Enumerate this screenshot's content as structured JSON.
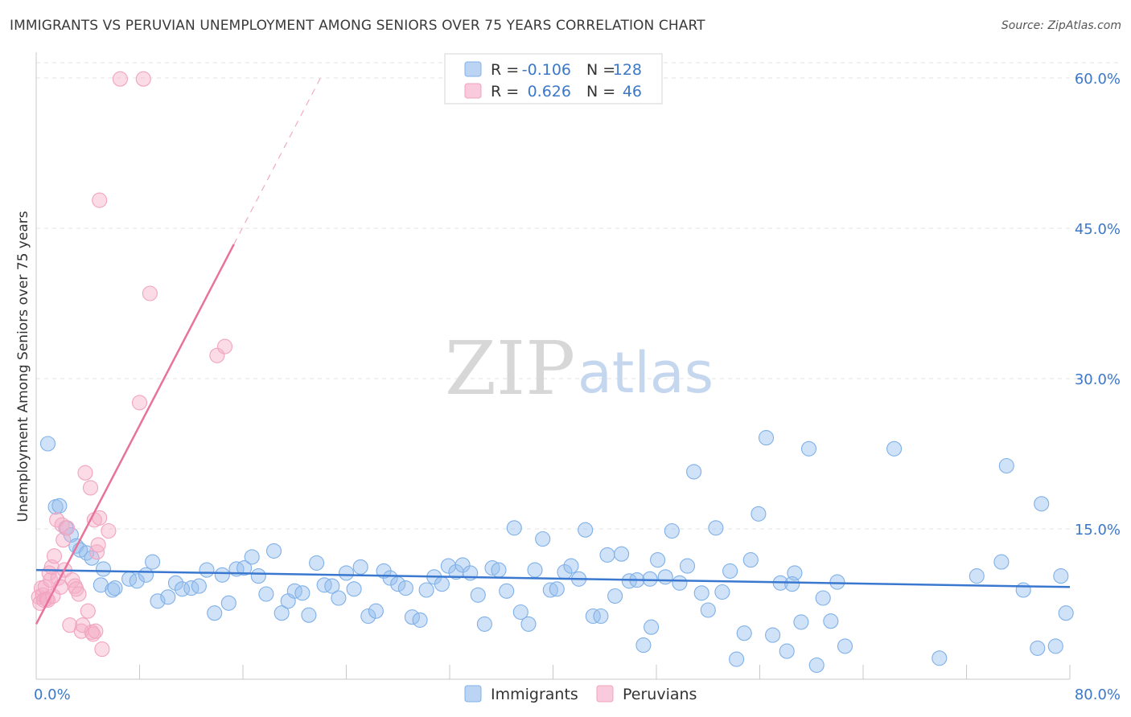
{
  "title": "IMMIGRANTS VS PERUVIAN UNEMPLOYMENT AMONG SENIORS OVER 75 YEARS CORRELATION CHART",
  "source": "Source: ZipAtlas.com",
  "watermark": {
    "zip": "ZIP",
    "atlas": "atlas"
  },
  "legend": {
    "r_label": "R =",
    "n_label": "N =",
    "rows": [
      {
        "name": "Immigrants",
        "r": "-0.106",
        "n": "128",
        "color": "#7fb0e8"
      },
      {
        "name": "Peruvians",
        "r": "0.626",
        "n": "46",
        "color": "#f2a3bf"
      }
    ]
  },
  "colors": {
    "blue": "#7fb0e8",
    "blue_line": "#3a78d0",
    "pink": "#f2a3bf",
    "pink_line": "#e8729b",
    "tick_text": "#3b78c9"
  },
  "chart_data": {
    "type": "scatter",
    "title": "IMMIGRANTS VS PERUVIAN UNEMPLOYMENT AMONG SENIORS OVER 75 YEARS CORRELATION CHART",
    "xlabel": "",
    "ylabel": "Unemployment Among Seniors over 75 years",
    "xlim": [
      0,
      80
    ],
    "ylim": [
      0,
      62
    ],
    "x_tick_labels": [
      "0.0%",
      "80.0%"
    ],
    "y_ticks": [
      15,
      30,
      45,
      60
    ],
    "y_tick_labels": [
      "15.0%",
      "30.0%",
      "45.0%",
      "60.0%"
    ],
    "grid": true,
    "legend_position": "top-center",
    "series": [
      {
        "name": "Immigrants",
        "trend": {
          "x": [
            0,
            80
          ],
          "y": [
            10.9,
            9.2
          ],
          "solid_to": 80
        },
        "points": [
          [
            0.9,
            23.5
          ],
          [
            1.5,
            17.2
          ],
          [
            1.8,
            17.3
          ],
          [
            2.3,
            15.1
          ],
          [
            2.7,
            14.4
          ],
          [
            3.1,
            13.3
          ],
          [
            3.4,
            12.9
          ],
          [
            3.9,
            12.6
          ],
          [
            4.3,
            12.1
          ],
          [
            5.2,
            11.0
          ],
          [
            5.0,
            9.4
          ],
          [
            5.9,
            8.9
          ],
          [
            6.1,
            9.1
          ],
          [
            7.2,
            10.0
          ],
          [
            7.8,
            9.8
          ],
          [
            8.5,
            10.4
          ],
          [
            9.0,
            11.7
          ],
          [
            9.4,
            7.8
          ],
          [
            10.2,
            8.2
          ],
          [
            10.8,
            9.6
          ],
          [
            11.3,
            9.0
          ],
          [
            12.0,
            9.1
          ],
          [
            12.6,
            9.3
          ],
          [
            13.2,
            10.9
          ],
          [
            13.8,
            6.6
          ],
          [
            14.4,
            10.4
          ],
          [
            14.9,
            7.6
          ],
          [
            15.5,
            11.0
          ],
          [
            16.1,
            11.1
          ],
          [
            16.7,
            12.2
          ],
          [
            17.2,
            10.3
          ],
          [
            17.8,
            8.5
          ],
          [
            18.4,
            12.8
          ],
          [
            19.0,
            6.6
          ],
          [
            19.5,
            7.8
          ],
          [
            20.0,
            8.8
          ],
          [
            20.6,
            8.6
          ],
          [
            21.1,
            6.4
          ],
          [
            21.7,
            11.6
          ],
          [
            22.3,
            9.4
          ],
          [
            22.9,
            9.3
          ],
          [
            23.4,
            8.1
          ],
          [
            24.0,
            10.6
          ],
          [
            24.6,
            9.0
          ],
          [
            25.1,
            11.2
          ],
          [
            25.7,
            6.3
          ],
          [
            26.3,
            6.8
          ],
          [
            26.9,
            10.8
          ],
          [
            27.4,
            10.1
          ],
          [
            28.0,
            9.5
          ],
          [
            28.6,
            9.1
          ],
          [
            29.1,
            6.2
          ],
          [
            29.7,
            5.9
          ],
          [
            30.2,
            8.9
          ],
          [
            30.8,
            10.2
          ],
          [
            31.4,
            9.5
          ],
          [
            31.9,
            11.3
          ],
          [
            32.5,
            10.7
          ],
          [
            33.0,
            11.4
          ],
          [
            33.6,
            10.6
          ],
          [
            34.2,
            8.4
          ],
          [
            34.7,
            5.5
          ],
          [
            35.3,
            11.1
          ],
          [
            35.8,
            10.9
          ],
          [
            36.4,
            8.8
          ],
          [
            37.0,
            15.1
          ],
          [
            37.5,
            6.7
          ],
          [
            38.1,
            5.5
          ],
          [
            38.6,
            10.9
          ],
          [
            39.2,
            14.0
          ],
          [
            39.8,
            8.9
          ],
          [
            40.3,
            9.0
          ],
          [
            40.9,
            10.7
          ],
          [
            41.4,
            11.3
          ],
          [
            42.0,
            10.0
          ],
          [
            42.5,
            14.9
          ],
          [
            43.1,
            6.3
          ],
          [
            43.7,
            6.3
          ],
          [
            44.2,
            12.4
          ],
          [
            44.8,
            8.3
          ],
          [
            45.3,
            12.5
          ],
          [
            45.9,
            9.8
          ],
          [
            46.5,
            9.9
          ],
          [
            47.0,
            3.4
          ],
          [
            47.6,
            5.2
          ],
          [
            48.1,
            11.9
          ],
          [
            48.7,
            10.2
          ],
          [
            49.2,
            14.8
          ],
          [
            49.8,
            9.6
          ],
          [
            50.4,
            11.3
          ],
          [
            50.9,
            20.7
          ],
          [
            51.5,
            8.6
          ],
          [
            52.0,
            6.9
          ],
          [
            52.6,
            15.1
          ],
          [
            53.1,
            8.7
          ],
          [
            53.7,
            10.8
          ],
          [
            54.2,
            2.0
          ],
          [
            54.8,
            4.6
          ],
          [
            55.3,
            11.9
          ],
          [
            55.9,
            16.5
          ],
          [
            56.5,
            24.1
          ],
          [
            57.0,
            4.4
          ],
          [
            57.6,
            9.6
          ],
          [
            58.1,
            2.8
          ],
          [
            58.7,
            10.6
          ],
          [
            59.2,
            5.7
          ],
          [
            59.8,
            23.0
          ],
          [
            60.4,
            1.4
          ],
          [
            60.9,
            8.1
          ],
          [
            61.5,
            5.8
          ],
          [
            62.0,
            9.7
          ],
          [
            62.6,
            3.3
          ],
          [
            66.4,
            23.0
          ],
          [
            69.9,
            2.1
          ],
          [
            72.8,
            10.3
          ],
          [
            74.7,
            11.7
          ],
          [
            75.1,
            21.3
          ],
          [
            76.4,
            8.9
          ],
          [
            77.5,
            3.1
          ],
          [
            77.8,
            17.5
          ],
          [
            78.9,
            3.3
          ],
          [
            79.3,
            10.3
          ],
          [
            79.7,
            6.6
          ],
          [
            58.5,
            9.5
          ],
          [
            47.5,
            10.0
          ]
        ]
      },
      {
        "name": "Peruvians",
        "trend": {
          "x": [
            0,
            22
          ],
          "y": [
            5.5,
            60.0
          ],
          "solid_to": 15.3
        },
        "points": [
          [
            0.2,
            8.2
          ],
          [
            0.3,
            7.6
          ],
          [
            0.4,
            9.1
          ],
          [
            0.5,
            8.4
          ],
          [
            0.6,
            7.9
          ],
          [
            0.7,
            9.2
          ],
          [
            0.8,
            8.0
          ],
          [
            0.9,
            7.9
          ],
          [
            1.0,
            10.6
          ],
          [
            1.1,
            9.9
          ],
          [
            1.2,
            11.2
          ],
          [
            1.3,
            8.3
          ],
          [
            1.4,
            12.3
          ],
          [
            1.6,
            15.9
          ],
          [
            1.7,
            10.1
          ],
          [
            1.9,
            9.2
          ],
          [
            2.0,
            15.4
          ],
          [
            2.1,
            13.9
          ],
          [
            2.2,
            10.9
          ],
          [
            2.4,
            15.1
          ],
          [
            2.6,
            5.4
          ],
          [
            2.8,
            9.9
          ],
          [
            3.0,
            9.3
          ],
          [
            3.1,
            9.0
          ],
          [
            3.3,
            8.5
          ],
          [
            3.5,
            4.8
          ],
          [
            3.6,
            5.4
          ],
          [
            3.8,
            20.6
          ],
          [
            4.0,
            6.8
          ],
          [
            4.2,
            19.1
          ],
          [
            4.3,
            4.7
          ],
          [
            4.4,
            4.5
          ],
          [
            4.5,
            15.9
          ],
          [
            4.7,
            12.7
          ],
          [
            4.8,
            13.4
          ],
          [
            4.9,
            16.1
          ],
          [
            5.1,
            3.0
          ],
          [
            4.6,
            4.8
          ],
          [
            5.6,
            14.8
          ],
          [
            4.9,
            47.8
          ],
          [
            6.5,
            59.9
          ],
          [
            8.3,
            59.9
          ],
          [
            8.8,
            38.5
          ],
          [
            8.0,
            27.6
          ],
          [
            14.0,
            32.3
          ],
          [
            14.6,
            33.2
          ]
        ]
      }
    ]
  }
}
